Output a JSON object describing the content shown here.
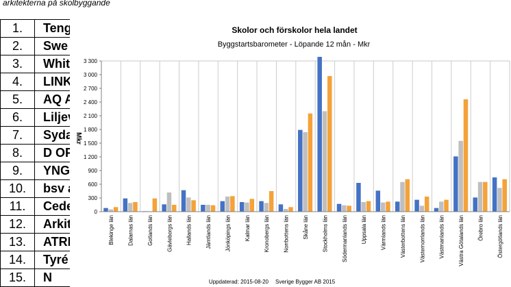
{
  "caption": "arkitekterna på skolbyggande",
  "rank_table": [
    {
      "rank": "1.",
      "name": "Teng"
    },
    {
      "rank": "2.",
      "name": "Swe"
    },
    {
      "rank": "3.",
      "name": "Whit"
    },
    {
      "rank": "4.",
      "name": "LINK"
    },
    {
      "rank": "5.",
      "name": "AQ A"
    },
    {
      "rank": "6.",
      "name": "Liljev"
    },
    {
      "rank": "7.",
      "name": "Syda"
    },
    {
      "rank": "8.",
      "name": "D OF"
    },
    {
      "rank": "9.",
      "name": "YNG"
    },
    {
      "rank": "10.",
      "name": "bsv a"
    },
    {
      "rank": "11.",
      "name": "Cede"
    },
    {
      "rank": "12.",
      "name": "Arkit"
    },
    {
      "rank": "13.",
      "name": "ATRI"
    },
    {
      "rank": "14.",
      "name": "Tyré"
    },
    {
      "rank": "15.",
      "name": "N"
    }
  ],
  "chart_data": {
    "type": "bar",
    "title": "Skolor och förskolor hela landet",
    "subtitle": "Byggstartsbarometer - Löpande 12 mån - Mkr",
    "ylabel": "Mkr",
    "xlabel": "",
    "ylim": [
      0,
      3300
    ],
    "yticks": [
      0,
      300,
      600,
      900,
      1200,
      1500,
      1800,
      2100,
      2400,
      2700,
      3000,
      3300
    ],
    "ytick_labels": [
      "0",
      "300",
      "600",
      "900",
      "1 200",
      "1 500",
      "1 800",
      "2 100",
      "2 400",
      "2 700",
      "3 000",
      "3 300"
    ],
    "grid": "vertical",
    "legend": "none",
    "categories": [
      "Blekinge län",
      "Dalarnas län",
      "Gotlands län",
      "Gävleborgs län",
      "Hallands län",
      "Jämtlands län",
      "Jönköpings län",
      "Kalmar län",
      "Kronobergs län",
      "Norrbottens län",
      "Skåne län",
      "Stockholms län",
      "Södermanlands län",
      "Uppsala län",
      "Värmlands län",
      "Västerbottens län",
      "Västernorrlands län",
      "Västmanlands län",
      "Västra Götalands län",
      "Örebro län",
      "Östergötlands län"
    ],
    "series": [
      {
        "values": [
          80,
          290,
          10,
          160,
          470,
          150,
          230,
          210,
          230,
          160,
          1790,
          3390,
          170,
          630,
          460,
          220,
          260,
          80,
          1210,
          310,
          750
        ]
      },
      {
        "values": [
          50,
          190,
          10,
          420,
          310,
          150,
          330,
          200,
          190,
          60,
          1740,
          2200,
          140,
          210,
          200,
          650,
          130,
          220,
          1550,
          650,
          520
        ]
      },
      {
        "values": [
          100,
          210,
          290,
          150,
          250,
          140,
          340,
          280,
          450,
          100,
          2150,
          2970,
          130,
          230,
          220,
          710,
          330,
          260,
          2460,
          650,
          710
        ]
      }
    ],
    "colors": [
      "#4472c4",
      "#bfbfbf",
      "#f4a23a"
    ],
    "footer_left": "Uppdaterad: 2015-08-20",
    "footer_right": "Sverige Bygger AB 2015"
  }
}
